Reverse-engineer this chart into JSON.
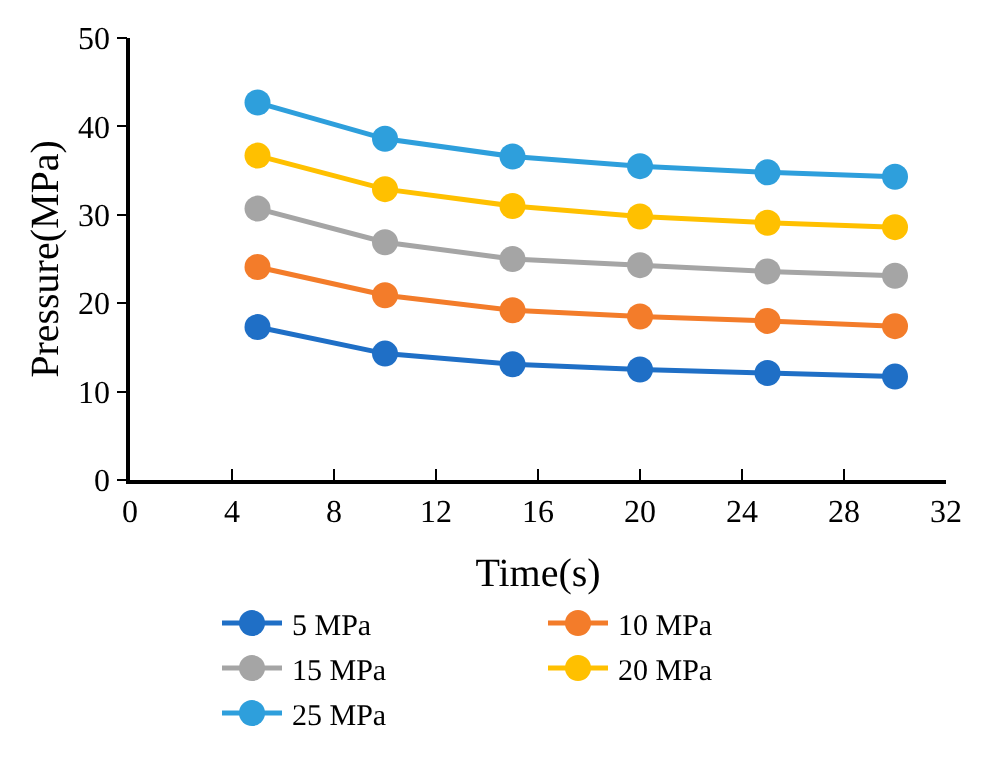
{
  "chart_data": {
    "type": "line",
    "xlabel": "Time(s)",
    "ylabel": "Pressure(MPa)",
    "x": [
      5,
      10,
      15,
      20,
      25,
      30
    ],
    "series": [
      {
        "name": "5 MPa",
        "color": "#1f6fc6",
        "values": [
          17.3,
          14.3,
          13.1,
          12.5,
          12.1,
          11.7
        ]
      },
      {
        "name": "10 MPa",
        "color": "#f37c2a",
        "values": [
          24.1,
          20.9,
          19.2,
          18.5,
          18.0,
          17.4
        ]
      },
      {
        "name": "15 MPa",
        "color": "#a5a5a5",
        "values": [
          30.7,
          26.9,
          25.0,
          24.3,
          23.6,
          23.1
        ]
      },
      {
        "name": "20 MPa",
        "color": "#ffc000",
        "values": [
          36.7,
          32.9,
          31.0,
          29.8,
          29.1,
          28.6
        ]
      },
      {
        "name": "25 MPa",
        "color": "#2e9fdc",
        "values": [
          42.7,
          38.6,
          36.6,
          35.5,
          34.8,
          34.3
        ]
      }
    ],
    "xlim": [
      0,
      32
    ],
    "xticks": [
      0,
      4,
      8,
      12,
      16,
      20,
      24,
      28,
      32
    ],
    "ylim": [
      0,
      50
    ],
    "yticks": [
      0,
      10,
      20,
      30,
      40,
      50
    ],
    "legend": "bottom",
    "marker": "circle",
    "line_style": "solid"
  }
}
